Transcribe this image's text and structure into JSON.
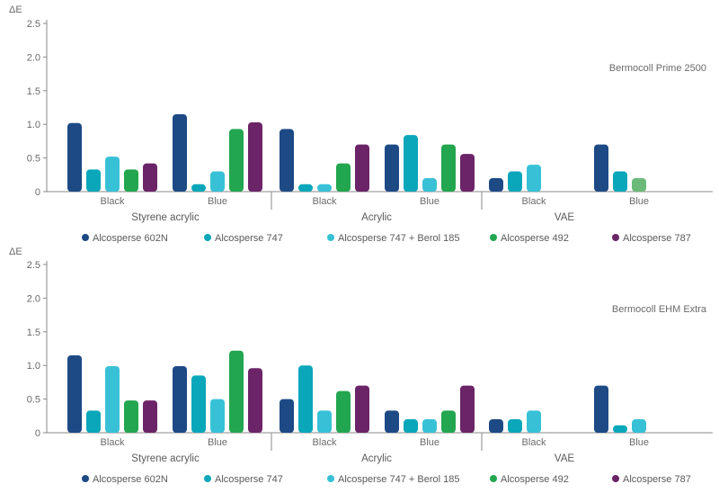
{
  "colors": {
    "Alcosperse 602N": "#1d4a85",
    "Alcosperse 747": "#0aa7ba",
    "Alcosperse 747 + Berol 185": "#38c1d6",
    "Alcosperse 492": "#23a650",
    "Alcosperse 787": "#6b2467",
    "axis": "#8a8a8a"
  },
  "chart_data": [
    {
      "type": "bar",
      "title": "Bermocoll Prime 2500",
      "ylabel": "ΔE",
      "ylim": [
        0,
        2.5
      ],
      "yticks": [
        "0",
        "0.5",
        "1.0",
        "1.5",
        "2.0",
        "2.5"
      ],
      "legend": "bottom",
      "groups": [
        {
          "name": "Styrene acrylic",
          "categories": [
            "Black",
            "Blue"
          ]
        },
        {
          "name": "Acrylic",
          "categories": [
            "Black",
            "Blue"
          ]
        },
        {
          "name": "VAE",
          "categories": [
            "Black",
            "Blue"
          ]
        }
      ],
      "series": [
        {
          "name": "Alcosperse 602N",
          "values": [
            1.02,
            1.15,
            0.93,
            0.7,
            0.2,
            0.7
          ]
        },
        {
          "name": "Alcosperse 747",
          "values": [
            0.33,
            0.11,
            0.11,
            0.84,
            0.3,
            0.3
          ]
        },
        {
          "name": "Alcosperse 747 + Berol 185",
          "values": [
            0.52,
            0.3,
            0.11,
            0.2,
            0.4,
            0.2
          ]
        },
        {
          "name": "Alcosperse 492",
          "values": [
            0.33,
            0.93,
            0.42,
            0.7,
            null,
            null
          ]
        },
        {
          "name": "Alcosperse 787",
          "values": [
            0.42,
            1.03,
            0.7,
            0.56,
            null,
            null
          ]
        }
      ]
    },
    {
      "type": "bar",
      "title": "Bermocoll EHM Extra",
      "ylabel": "ΔE",
      "ylim": [
        0,
        2.5
      ],
      "yticks": [
        "0",
        "0.5",
        "1.0",
        "1.5",
        "2.0",
        "2.5"
      ],
      "legend": "bottom",
      "groups": [
        {
          "name": "Styrene acrylic",
          "categories": [
            "Black",
            "Blue"
          ]
        },
        {
          "name": "Acrylic",
          "categories": [
            "Black",
            "Blue"
          ]
        },
        {
          "name": "VAE",
          "categories": [
            "Black",
            "Blue"
          ]
        }
      ],
      "series": [
        {
          "name": "Alcosperse 602N",
          "values": [
            1.15,
            0.99,
            0.5,
            0.33,
            0.2,
            0.7
          ]
        },
        {
          "name": "Alcosperse 747",
          "values": [
            0.33,
            0.85,
            1.0,
            0.2,
            0.2,
            0.11
          ]
        },
        {
          "name": "Alcosperse 747 + Berol 185",
          "values": [
            0.99,
            0.5,
            0.33,
            0.2,
            0.33,
            0.2
          ]
        },
        {
          "name": "Alcosperse 492",
          "values": [
            0.48,
            1.22,
            0.62,
            0.33,
            null,
            null
          ]
        },
        {
          "name": "Alcosperse 787",
          "values": [
            0.48,
            0.96,
            0.7,
            0.7,
            null,
            null
          ]
        }
      ]
    }
  ]
}
